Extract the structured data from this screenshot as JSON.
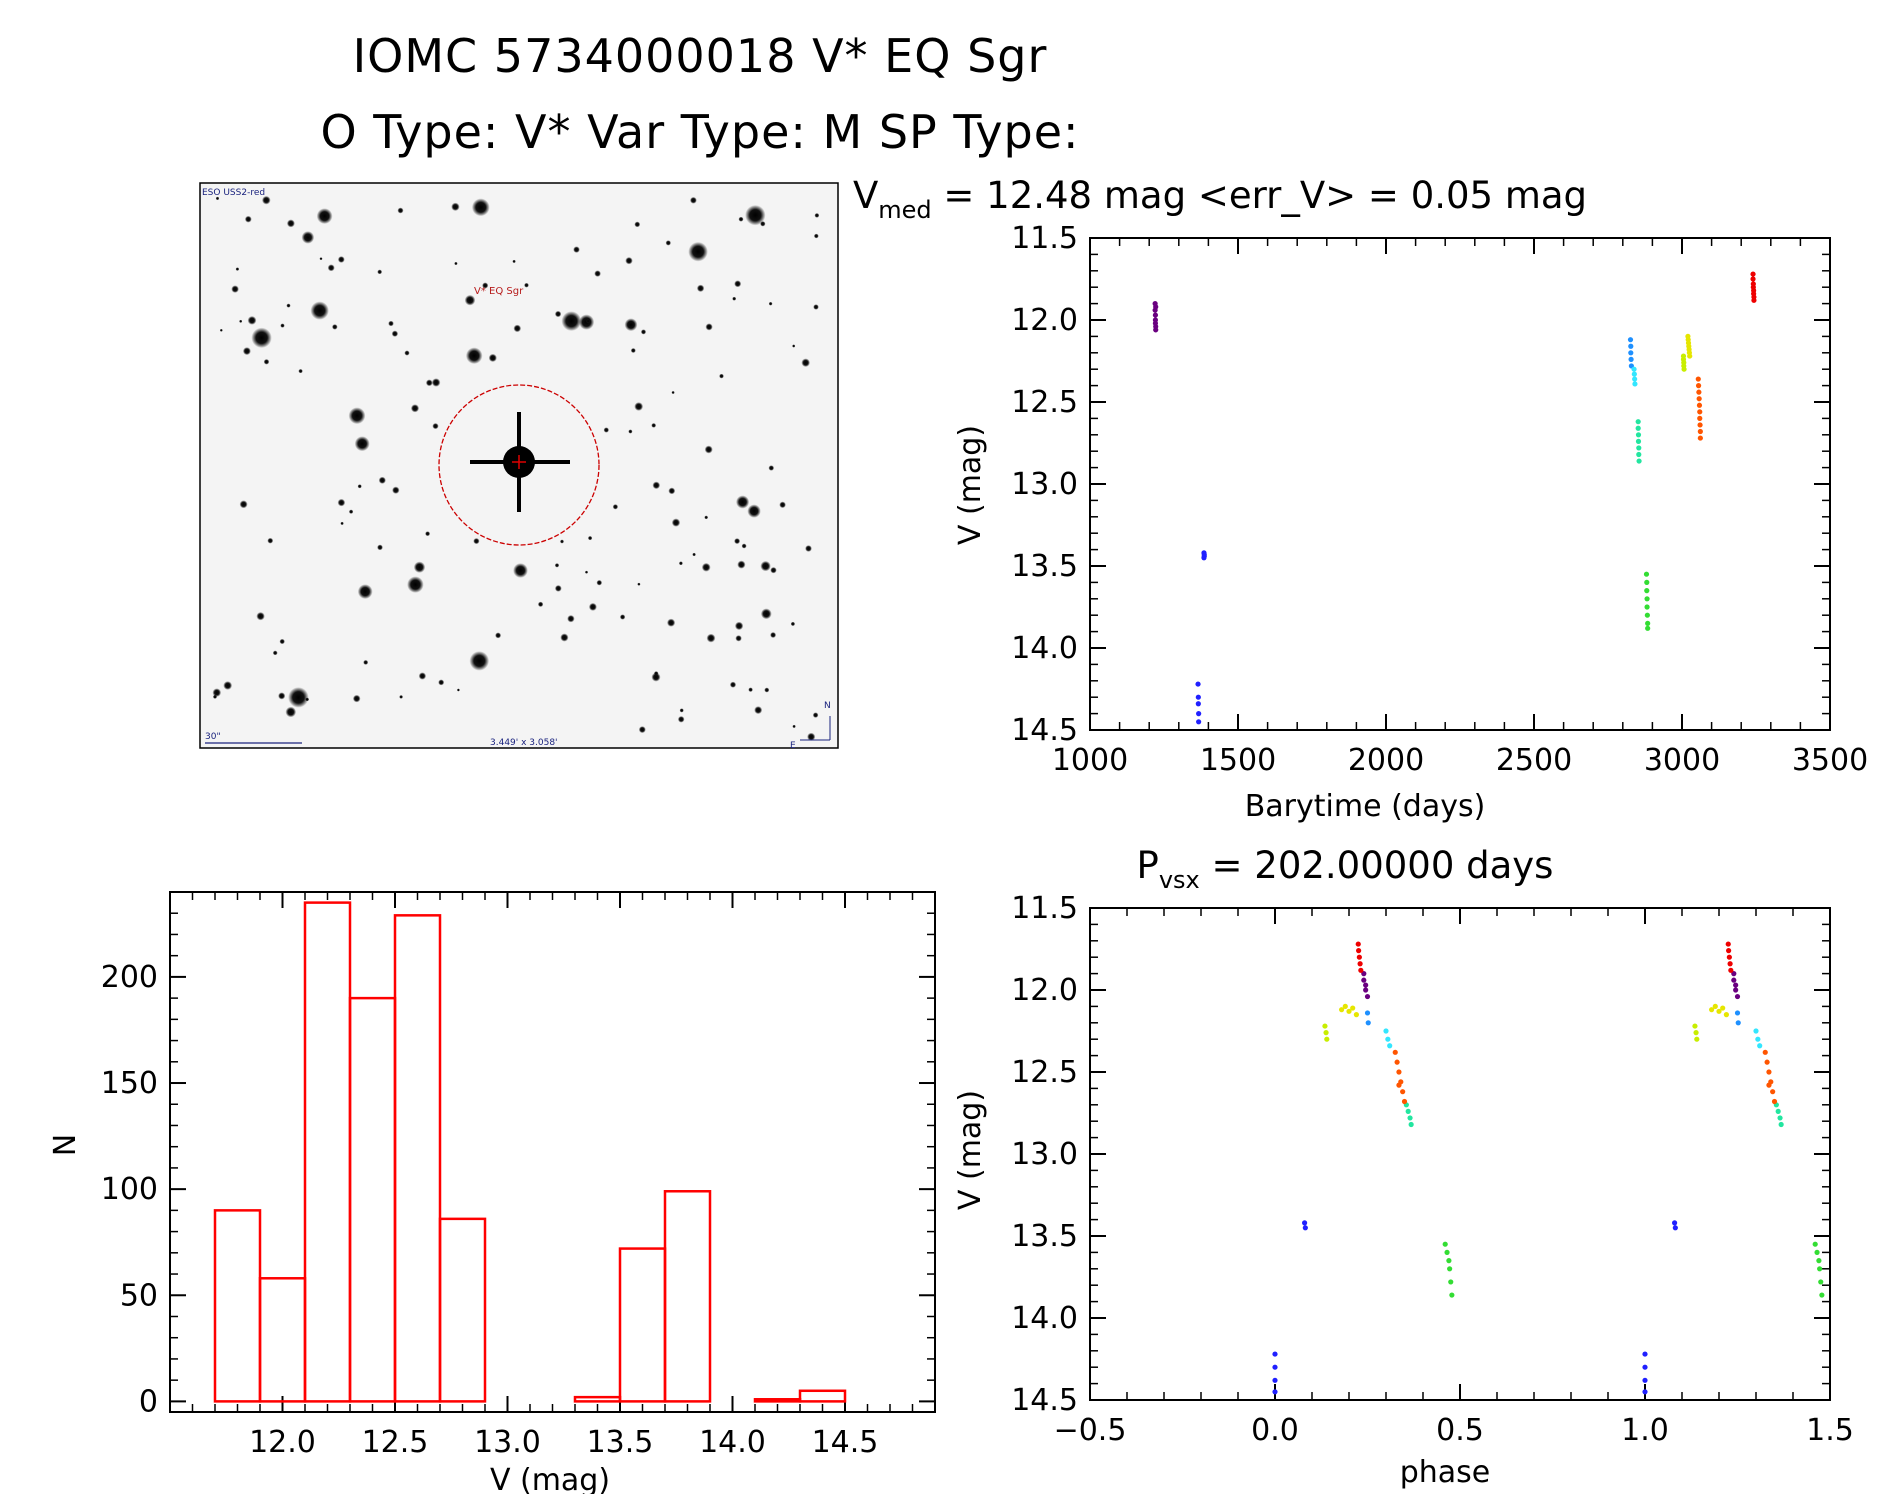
{
  "figure": {
    "title_line1": "IOMC 5734000018    V* EQ Sgr",
    "title_line2": "O Type: V*   Var Type: M   SP Type:"
  },
  "image_panel": {
    "survey_label": "ESO USS2-red",
    "object_label": "V* EQ Sgr",
    "scale_label": "30\"",
    "size_label": "3.449' x 3.058'",
    "north_label": "N",
    "east_label": "E"
  },
  "colors": {
    "histogram": "#ff0000",
    "axes": "#000000",
    "purple": "#6a0080",
    "blue": "#2020ff",
    "azure": "#1e90ff",
    "cyan": "#33e6ff",
    "aquamarine": "#22e6a0",
    "green": "#33dd33",
    "yellow_green": "#c8ee00",
    "yellow": "#e6e600",
    "orange": "#ff5500",
    "red": "#ee0000"
  },
  "chart_data": [
    {
      "id": "lightcurve",
      "type": "scatter",
      "title": "V_med = 12.48 mag <err_V> = 0.05 mag",
      "title_parts": {
        "v": "V",
        "v_sub": "med",
        "rest": " = 12.48 mag <err_V> = 0.05 mag"
      },
      "xlabel": "Barytime (days)",
      "ylabel": "V (mag)",
      "xlim": [
        1000,
        3500
      ],
      "ylim": [
        14.5,
        11.5
      ],
      "xticks": [
        "1000",
        "1500",
        "2000",
        "2500",
        "3000",
        "3500"
      ],
      "yticks": [
        "11.5",
        "12.0",
        "12.5",
        "13.0",
        "13.5",
        "14.0",
        "14.5"
      ],
      "series": [
        {
          "color": "purple",
          "x": [
            1220,
            1220,
            1221,
            1221,
            1221,
            1222,
            1222,
            1222
          ],
          "y": [
            11.9,
            11.94,
            11.97,
            12.0,
            12.02,
            12.04,
            11.92,
            12.06
          ]
        },
        {
          "color": "blue",
          "x": [
            1385,
            1385,
            1386,
            1386
          ],
          "y": [
            13.42,
            13.45,
            13.43,
            13.44
          ]
        },
        {
          "color": "blue",
          "x": [
            1365,
            1366,
            1366,
            1367,
            1367
          ],
          "y": [
            14.22,
            14.3,
            14.34,
            14.4,
            14.45
          ]
        },
        {
          "color": "azure",
          "x": [
            2826,
            2827,
            2827,
            2828,
            2829
          ],
          "y": [
            12.12,
            12.16,
            12.2,
            12.24,
            12.28
          ]
        },
        {
          "color": "cyan",
          "x": [
            2838,
            2839,
            2840,
            2841
          ],
          "y": [
            12.3,
            12.33,
            12.36,
            12.39
          ]
        },
        {
          "color": "aquamarine",
          "x": [
            2852,
            2852,
            2853,
            2853,
            2854,
            2854,
            2855
          ],
          "y": [
            12.62,
            12.66,
            12.7,
            12.74,
            12.78,
            12.82,
            12.86
          ]
        },
        {
          "color": "green",
          "x": [
            2880,
            2881,
            2881,
            2882,
            2882,
            2883,
            2884,
            2884
          ],
          "y": [
            13.55,
            13.6,
            13.65,
            13.7,
            13.75,
            13.8,
            13.85,
            13.88
          ]
        },
        {
          "color": "yellow_green",
          "x": [
            3005,
            3005,
            3006,
            3006,
            3007
          ],
          "y": [
            12.22,
            12.24,
            12.26,
            12.28,
            12.3
          ]
        },
        {
          "color": "yellow",
          "x": [
            3020,
            3021,
            3022,
            3023,
            3024,
            3025,
            3026
          ],
          "y": [
            12.1,
            12.12,
            12.14,
            12.16,
            12.18,
            12.2,
            12.22
          ]
        },
        {
          "color": "orange",
          "x": [
            3055,
            3056,
            3057,
            3058,
            3059,
            3060,
            3060,
            3061,
            3062,
            3062
          ],
          "y": [
            12.36,
            12.4,
            12.44,
            12.48,
            12.52,
            12.56,
            12.6,
            12.64,
            12.68,
            12.72
          ]
        },
        {
          "color": "red",
          "x": [
            3240,
            3240,
            3241,
            3241,
            3242,
            3242,
            3243,
            3243
          ],
          "y": [
            11.72,
            11.75,
            11.78,
            11.8,
            11.82,
            11.84,
            11.86,
            11.88
          ]
        }
      ]
    },
    {
      "id": "histogram",
      "type": "bar",
      "title": "",
      "xlabel": "V (mag)",
      "ylabel": "N",
      "xlim": [
        11.5,
        14.9
      ],
      "ylim": [
        -5,
        240
      ],
      "xticks": [
        "12.0",
        "12.5",
        "13.0",
        "13.5",
        "14.0",
        "14.5"
      ],
      "yticks": [
        "0",
        "50",
        "100",
        "150",
        "200"
      ],
      "bin_edges": [
        11.7,
        11.9,
        12.1,
        12.3,
        12.5,
        12.7,
        12.9,
        13.1,
        13.3,
        13.5,
        13.7,
        13.9,
        14.1,
        14.3,
        14.5
      ],
      "values": [
        90,
        58,
        235,
        190,
        229,
        86,
        0,
        0,
        2,
        72,
        99,
        0,
        1,
        5
      ]
    },
    {
      "id": "phased",
      "type": "scatter",
      "title": "P_vsx = 202.00000 days",
      "title_parts": {
        "p": "P",
        "p_sub": "vsx",
        "rest": " = 202.00000 days"
      },
      "xlabel": "phase",
      "ylabel": "V (mag)",
      "xlim": [
        -0.5,
        1.5
      ],
      "ylim": [
        14.5,
        11.5
      ],
      "xticks": [
        "−0.5",
        "0.0",
        "0.5",
        "1.0",
        "1.5"
      ],
      "yticks": [
        "11.5",
        "12.0",
        "12.5",
        "13.0",
        "13.5",
        "14.0",
        "14.5"
      ],
      "series": [
        {
          "color": "purple",
          "x": [
            0.24,
            0.24,
            0.245,
            0.245,
            0.25,
            1.24,
            1.24,
            1.245,
            1.245,
            1.25
          ],
          "y": [
            11.9,
            11.94,
            11.97,
            12.0,
            12.04,
            11.9,
            11.94,
            11.97,
            12.0,
            12.04
          ]
        },
        {
          "color": "blue",
          "x": [
            0.08,
            0.082,
            1.08,
            1.082,
            0.0,
            0.0,
            0.0,
            0.0,
            1.0,
            1.0,
            1.0,
            1.0
          ],
          "y": [
            13.42,
            13.45,
            13.42,
            13.45,
            14.22,
            14.3,
            14.38,
            14.45,
            14.22,
            14.3,
            14.38,
            14.45
          ]
        },
        {
          "color": "azure",
          "x": [
            0.25,
            0.252,
            1.25,
            1.252
          ],
          "y": [
            12.14,
            12.2,
            12.14,
            12.2
          ]
        },
        {
          "color": "cyan",
          "x": [
            0.3,
            0.305,
            0.31,
            1.3,
            1.305,
            1.31
          ],
          "y": [
            12.25,
            12.3,
            12.34,
            12.25,
            12.3,
            12.34
          ]
        },
        {
          "color": "aquamarine",
          "x": [
            0.355,
            0.36,
            0.365,
            0.368,
            1.355,
            1.36,
            1.365,
            1.368
          ],
          "y": [
            12.7,
            12.74,
            12.78,
            12.82,
            12.7,
            12.74,
            12.78,
            12.82
          ]
        },
        {
          "color": "green",
          "x": [
            0.46,
            0.465,
            0.47,
            0.472,
            0.475,
            0.478,
            1.46,
            1.465,
            1.47,
            1.472,
            1.475,
            1.478
          ],
          "y": [
            13.55,
            13.6,
            13.65,
            13.7,
            13.78,
            13.86,
            13.55,
            13.6,
            13.65,
            13.7,
            13.78,
            13.86
          ]
        },
        {
          "color": "yellow_green",
          "x": [
            0.135,
            0.138,
            0.14,
            1.135,
            1.138,
            1.14
          ],
          "y": [
            12.22,
            12.26,
            12.3,
            12.22,
            12.26,
            12.3
          ]
        },
        {
          "color": "yellow",
          "x": [
            0.18,
            0.19,
            0.2,
            0.21,
            0.22,
            1.18,
            1.19,
            1.2,
            1.21,
            1.22
          ],
          "y": [
            12.12,
            12.1,
            12.13,
            12.11,
            12.15,
            12.12,
            12.1,
            12.13,
            12.11,
            12.15
          ]
        },
        {
          "color": "orange",
          "x": [
            0.325,
            0.33,
            0.335,
            0.34,
            0.345,
            0.35,
            0.335,
            1.325,
            1.33,
            1.335,
            1.34,
            1.345,
            1.35,
            1.335
          ],
          "y": [
            12.38,
            12.44,
            12.5,
            12.56,
            12.62,
            12.68,
            12.58,
            12.38,
            12.44,
            12.5,
            12.56,
            12.62,
            12.68,
            12.58
          ]
        },
        {
          "color": "red",
          "x": [
            0.225,
            0.226,
            0.228,
            0.23,
            0.232,
            1.225,
            1.226,
            1.228,
            1.23,
            1.232
          ],
          "y": [
            11.72,
            11.76,
            11.8,
            11.84,
            11.88,
            11.72,
            11.76,
            11.8,
            11.84,
            11.88
          ]
        }
      ]
    }
  ]
}
